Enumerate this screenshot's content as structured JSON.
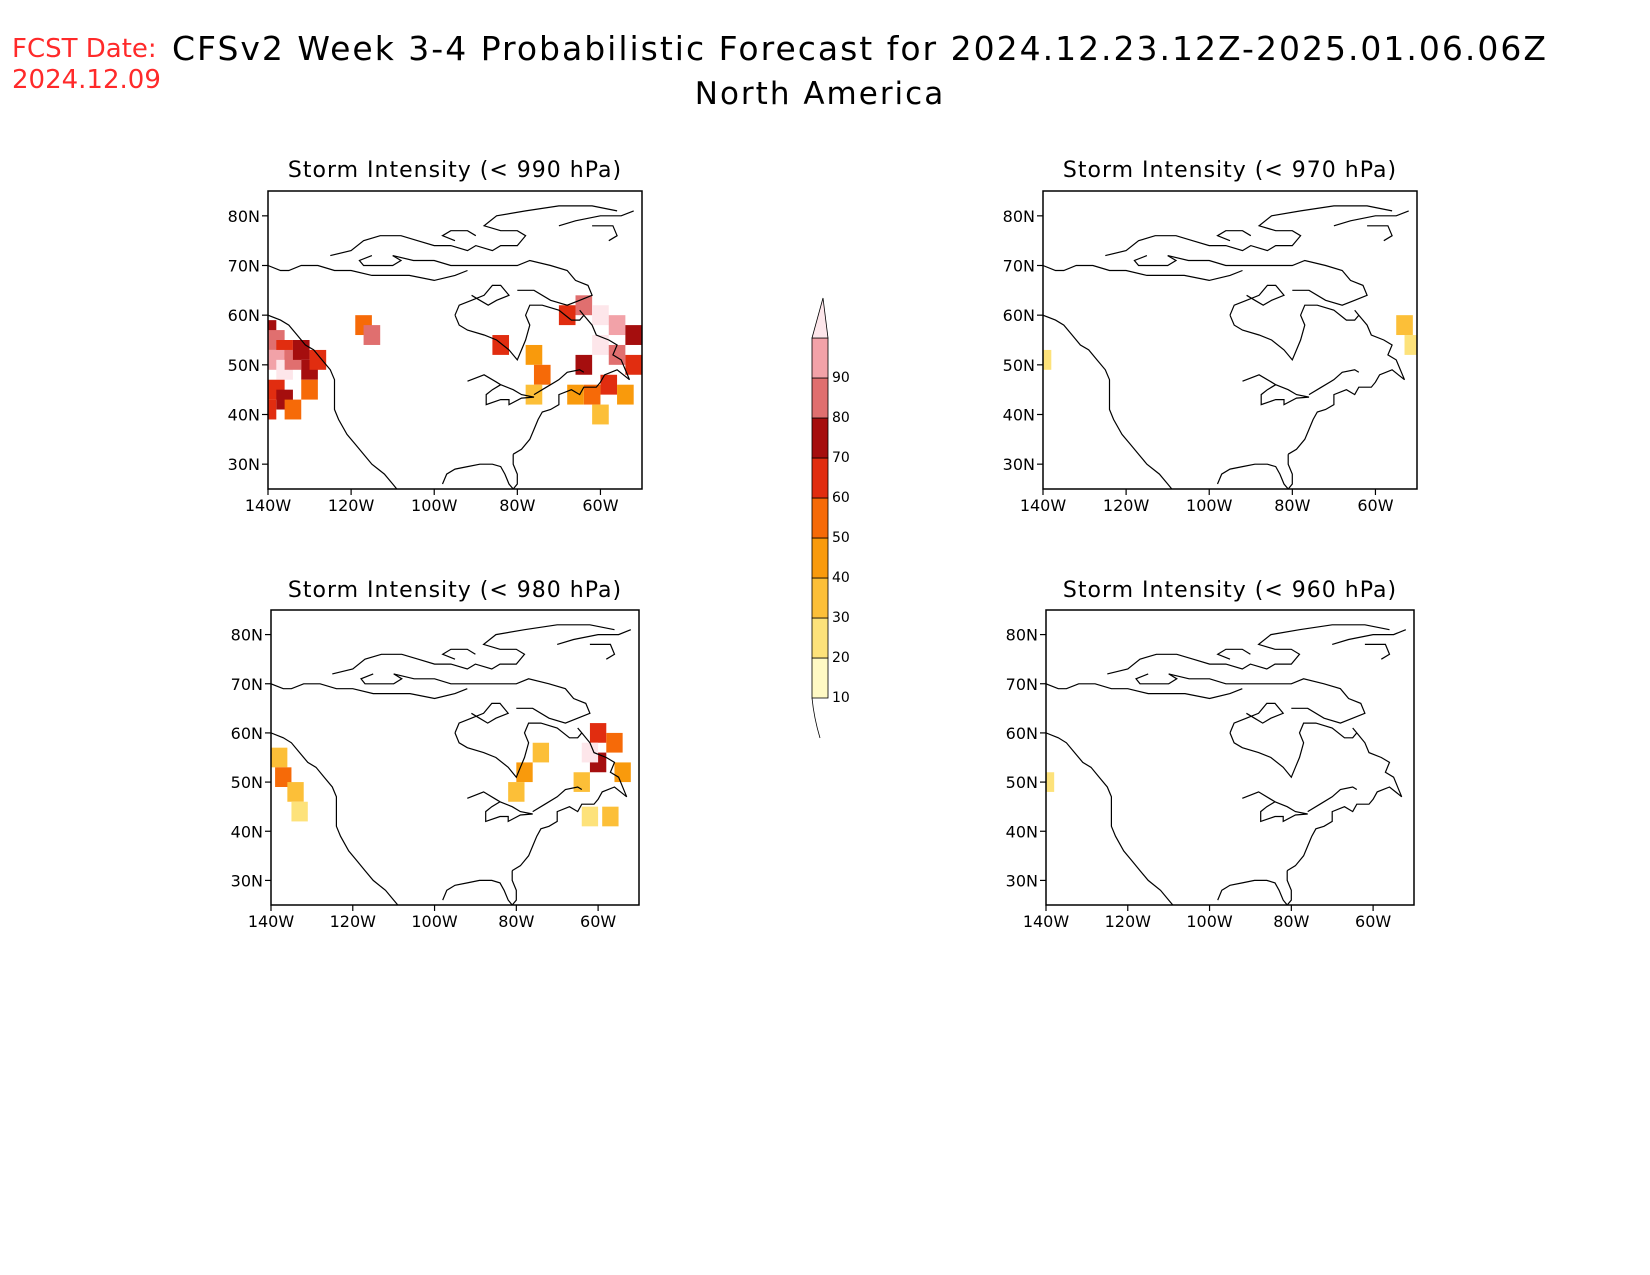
{
  "header": {
    "fcst_label": "FCST Date:",
    "fcst_date": "2024.12.09",
    "title": "CFSv2  Week  3-4  Probabilistic  Forecast  for  2024.12.23.12Z-2025.01.06.06Z",
    "subtitle": "North  America"
  },
  "axes": {
    "lat_ticks": [
      {
        "value": 80,
        "label": "80N"
      },
      {
        "value": 70,
        "label": "70N"
      },
      {
        "value": 60,
        "label": "60N"
      },
      {
        "value": 50,
        "label": "50N"
      },
      {
        "value": 40,
        "label": "40N"
      },
      {
        "value": 30,
        "label": "30N"
      }
    ],
    "lon_ticks": [
      {
        "value": -140,
        "label": "140W"
      },
      {
        "value": -120,
        "label": "120W"
      },
      {
        "value": -100,
        "label": "100W"
      },
      {
        "value": -80,
        "label": "80W"
      },
      {
        "value": -60,
        "label": "60W"
      }
    ],
    "lon_range": [
      -140,
      -50
    ],
    "lat_range": [
      25,
      85
    ]
  },
  "colorbar": {
    "levels": [
      {
        "label": "10",
        "color": "#fff9c4"
      },
      {
        "label": "20",
        "color": "#fde27a"
      },
      {
        "label": "30",
        "color": "#fcbf38"
      },
      {
        "label": "40",
        "color": "#f99a0c"
      },
      {
        "label": "50",
        "color": "#f66a08"
      },
      {
        "label": "60",
        "color": "#e12d10"
      },
      {
        "label": "70",
        "color": "#a50e0e"
      },
      {
        "label": "80",
        "color": "#e06f6f"
      },
      {
        "label": "90",
        "color": "#f2a2a8"
      }
    ],
    "top_color": "#fde6ea"
  },
  "panels": [
    {
      "id": "panel-990",
      "title": "Storm  Intensity  (<  990  hPa)",
      "cells": [
        {
          "lon": -140,
          "lat": 57,
          "lvl": 6
        },
        {
          "lon": -138,
          "lat": 55,
          "lvl": 7
        },
        {
          "lon": -136,
          "lat": 53,
          "lvl": 5
        },
        {
          "lon": -138,
          "lat": 51,
          "lvl": 8
        },
        {
          "lon": -136,
          "lat": 49,
          "lvl": 9
        },
        {
          "lon": -134,
          "lat": 51,
          "lvl": 7
        },
        {
          "lon": -132,
          "lat": 53,
          "lvl": 6
        },
        {
          "lon": -130,
          "lat": 49,
          "lvl": 6
        },
        {
          "lon": -128,
          "lat": 51,
          "lvl": 5
        },
        {
          "lon": -138,
          "lat": 45,
          "lvl": 5
        },
        {
          "lon": -136,
          "lat": 43,
          "lvl": 6
        },
        {
          "lon": -134,
          "lat": 41,
          "lvl": 4
        },
        {
          "lon": -140,
          "lat": 41,
          "lvl": 5
        },
        {
          "lon": -130,
          "lat": 45,
          "lvl": 4
        },
        {
          "lon": -117,
          "lat": 58,
          "lvl": 4
        },
        {
          "lon": -115,
          "lat": 56,
          "lvl": 7
        },
        {
          "lon": -84,
          "lat": 54,
          "lvl": 5
        },
        {
          "lon": -76,
          "lat": 52,
          "lvl": 3
        },
        {
          "lon": -74,
          "lat": 48,
          "lvl": 4
        },
        {
          "lon": -76,
          "lat": 44,
          "lvl": 2
        },
        {
          "lon": -68,
          "lat": 60,
          "lvl": 5
        },
        {
          "lon": -64,
          "lat": 62,
          "lvl": 7
        },
        {
          "lon": -60,
          "lat": 60,
          "lvl": 9
        },
        {
          "lon": -56,
          "lat": 58,
          "lvl": 8
        },
        {
          "lon": -60,
          "lat": 54,
          "lvl": 9
        },
        {
          "lon": -56,
          "lat": 52,
          "lvl": 7
        },
        {
          "lon": -52,
          "lat": 56,
          "lvl": 6
        },
        {
          "lon": -52,
          "lat": 50,
          "lvl": 5
        },
        {
          "lon": -64,
          "lat": 50,
          "lvl": 6
        },
        {
          "lon": -58,
          "lat": 46,
          "lvl": 5
        },
        {
          "lon": -62,
          "lat": 44,
          "lvl": 4
        },
        {
          "lon": -54,
          "lat": 44,
          "lvl": 3
        },
        {
          "lon": -66,
          "lat": 44,
          "lvl": 3
        },
        {
          "lon": -60,
          "lat": 40,
          "lvl": 2
        }
      ]
    },
    {
      "id": "panel-970",
      "title": "Storm  Intensity  (<  970  hPa)",
      "cells": [
        {
          "lon": -53,
          "lat": 58,
          "lvl": 2
        },
        {
          "lon": -51,
          "lat": 54,
          "lvl": 1
        },
        {
          "lon": -140,
          "lat": 51,
          "lvl": 1
        }
      ]
    },
    {
      "id": "panel-980",
      "title": "Storm  Intensity  (<  980  hPa)",
      "cells": [
        {
          "lon": -138,
          "lat": 55,
          "lvl": 2
        },
        {
          "lon": -137,
          "lat": 51,
          "lvl": 4
        },
        {
          "lon": -134,
          "lat": 48,
          "lvl": 2
        },
        {
          "lon": -133,
          "lat": 44,
          "lvl": 1
        },
        {
          "lon": -78,
          "lat": 52,
          "lvl": 3
        },
        {
          "lon": -74,
          "lat": 56,
          "lvl": 2
        },
        {
          "lon": -80,
          "lat": 48,
          "lvl": 2
        },
        {
          "lon": -60,
          "lat": 60,
          "lvl": 5
        },
        {
          "lon": -56,
          "lat": 58,
          "lvl": 4
        },
        {
          "lon": -60,
          "lat": 54,
          "lvl": 6
        },
        {
          "lon": -62,
          "lat": 56,
          "lvl": 9
        },
        {
          "lon": -54,
          "lat": 52,
          "lvl": 3
        },
        {
          "lon": -64,
          "lat": 50,
          "lvl": 2
        },
        {
          "lon": -62,
          "lat": 43,
          "lvl": 1
        },
        {
          "lon": -57,
          "lat": 43,
          "lvl": 2
        }
      ]
    },
    {
      "id": "panel-960",
      "title": "Storm  Intensity  (<  960  hPa)",
      "cells": [
        {
          "lon": -140,
          "lat": 50,
          "lvl": 1
        }
      ]
    }
  ]
}
